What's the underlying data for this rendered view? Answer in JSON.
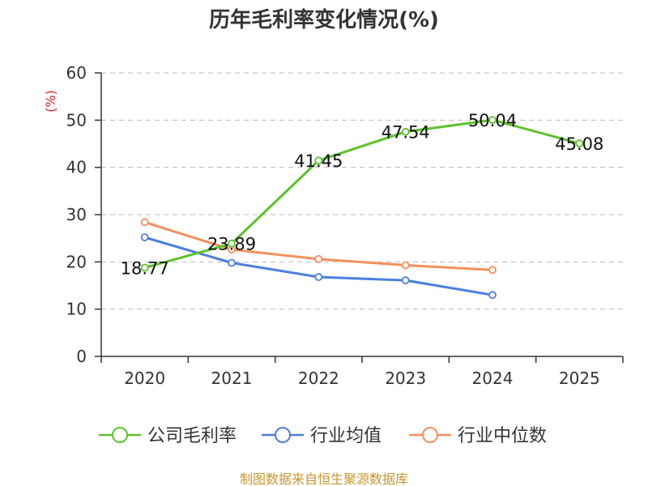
{
  "chart_data": {
    "type": "line",
    "title": "历年毛利率变化情况(%)",
    "ylabel": "(%)",
    "xlabel": "",
    "categories": [
      "2020",
      "2021",
      "2022",
      "2023",
      "2024",
      "2025"
    ],
    "ylim": [
      0,
      60
    ],
    "yticks": [
      0,
      10,
      20,
      30,
      40,
      50,
      60
    ],
    "grid": true,
    "legend_position": "bottom",
    "series": [
      {
        "name": "公司毛利率",
        "color": "#5cc22b",
        "values": [
          18.77,
          23.89,
          41.45,
          47.54,
          50.04,
          45.08
        ],
        "show_labels": true
      },
      {
        "name": "行业均值",
        "color": "#4a7fe0",
        "values": [
          25.2,
          19.8,
          16.8,
          16.1,
          13.0,
          null
        ],
        "show_labels": false
      },
      {
        "name": "行业中位数",
        "color": "#f4905c",
        "values": [
          28.4,
          22.6,
          20.6,
          19.3,
          18.3,
          null
        ],
        "show_labels": false
      }
    ],
    "data_labels": [
      "18.77",
      "23.89",
      "41.45",
      "47.54",
      "50.04",
      "45.08"
    ]
  },
  "colors": {
    "ylabel": "#e02020",
    "source": "#c8962e",
    "axis": "#333333",
    "grid": "#bbbbbb"
  },
  "source": "制图数据来自恒生聚源数据库"
}
